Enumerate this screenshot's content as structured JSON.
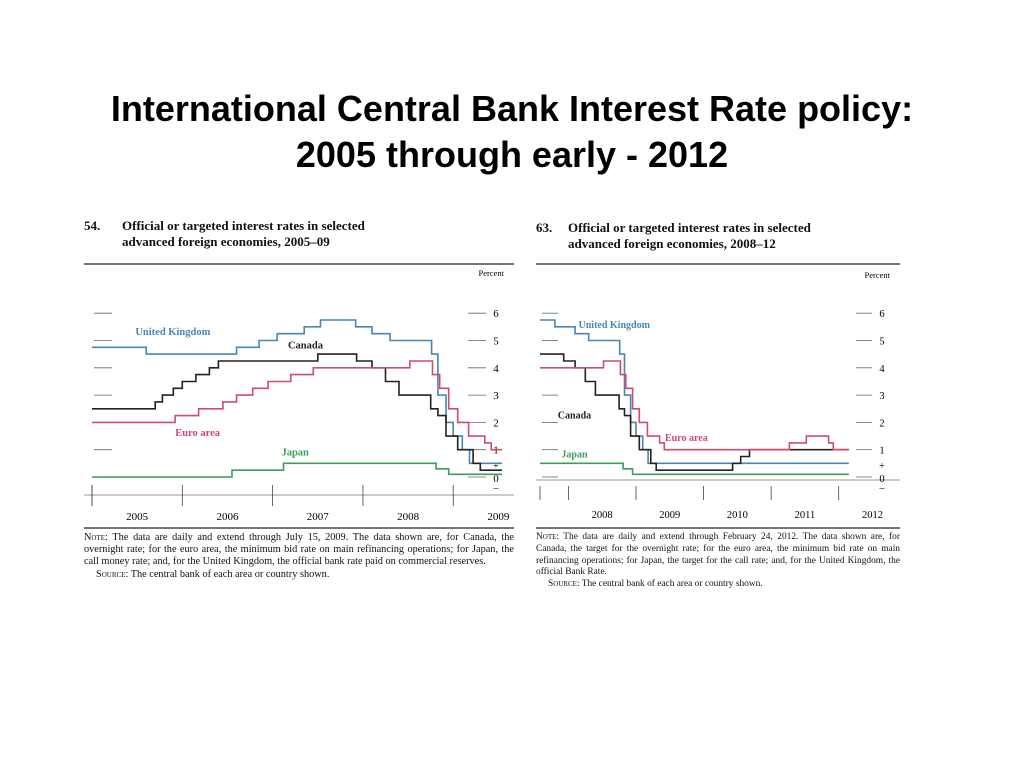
{
  "slide": {
    "title_line1": "International Central Bank Interest Rate policy:",
    "title_line2": "2005 through early - 2012"
  },
  "panels": [
    {
      "number": "54.",
      "title_line1": "Official or targeted interest rates in selected",
      "title_line2": "advanced foreign economies, 2005–09",
      "note_label": "Note:",
      "note_text": "The data are daily and extend through July 15, 2009. The data shown are, for Canada, the overnight rate; for the euro area, the minimum bid rate on main refinancing operations; for Japan, the call money rate; and, for the United Kingdom, the official bank rate paid on commercial reserves.",
      "source_label": "Source:",
      "source_text": "The central bank of each area or country shown."
    },
    {
      "number": "63.",
      "title_line1": "Official or targeted interest rates in selected",
      "title_line2": "advanced foreign economies, 2008–12",
      "note_label": "Note:",
      "note_text": "The data are daily and extend through February 24, 2012. The data shown are, for Canada, the target for the overnight rate; for the euro area, the minimum bid rate on main refinancing operations; for Japan, the target for the call rate; and, for the United Kingdom, the official Bank Rate.",
      "source_label": "Source:",
      "source_text": "The central bank of each area or country shown."
    }
  ],
  "chart_data": [
    {
      "type": "line",
      "step": true,
      "xlim": [
        2005.0,
        2009.54
      ],
      "ylim": [
        0,
        6
      ],
      "y_unit_label": "Percent",
      "yticks": [
        "0",
        "1",
        "2",
        "3",
        "4",
        "5",
        "6"
      ],
      "plus_minus": "+\n–",
      "x_tick_labels": [
        "2005",
        "2006",
        "2007",
        "2008",
        "2009"
      ],
      "colors": {
        "United Kingdom": "#4a86b4",
        "Canada": "#222222",
        "Euro area": "#d24a6e",
        "Japan": "#3f9a5f"
      },
      "series": [
        {
          "name": "United Kingdom",
          "label_at": [
            2005.48,
            5.2
          ],
          "anchor": "start",
          "points": [
            [
              2005.0,
              4.75
            ],
            [
              2005.6,
              4.5
            ],
            [
              2006.6,
              4.75
            ],
            [
              2006.85,
              5.0
            ],
            [
              2007.05,
              5.25
            ],
            [
              2007.35,
              5.5
            ],
            [
              2007.53,
              5.75
            ],
            [
              2007.92,
              5.5
            ],
            [
              2008.1,
              5.25
            ],
            [
              2008.3,
              5.0
            ],
            [
              2008.76,
              4.5
            ],
            [
              2008.83,
              3.0
            ],
            [
              2008.92,
              2.0
            ],
            [
              2009.0,
              1.5
            ],
            [
              2009.1,
              1.0
            ],
            [
              2009.18,
              0.5
            ],
            [
              2009.54,
              0.5
            ]
          ]
        },
        {
          "name": "Canada",
          "label_at": [
            2007.17,
            4.7
          ],
          "anchor": "start",
          "points": [
            [
              2005.0,
              2.5
            ],
            [
              2005.7,
              2.75
            ],
            [
              2005.78,
              3.0
            ],
            [
              2005.9,
              3.25
            ],
            [
              2006.0,
              3.5
            ],
            [
              2006.15,
              3.75
            ],
            [
              2006.3,
              4.0
            ],
            [
              2006.4,
              4.25
            ],
            [
              2007.5,
              4.5
            ],
            [
              2007.93,
              4.25
            ],
            [
              2008.1,
              4.0
            ],
            [
              2008.25,
              3.5
            ],
            [
              2008.4,
              3.0
            ],
            [
              2008.75,
              2.5
            ],
            [
              2008.83,
              2.25
            ],
            [
              2008.92,
              1.5
            ],
            [
              2009.05,
              1.0
            ],
            [
              2009.22,
              0.5
            ],
            [
              2009.3,
              0.25
            ],
            [
              2009.54,
              0.25
            ]
          ]
        },
        {
          "name": "Euro area",
          "label_at": [
            2006.17,
            1.5
          ],
          "anchor": "middle",
          "points": [
            [
              2005.0,
              2.0
            ],
            [
              2005.92,
              2.25
            ],
            [
              2006.18,
              2.5
            ],
            [
              2006.45,
              2.75
            ],
            [
              2006.6,
              3.0
            ],
            [
              2006.78,
              3.25
            ],
            [
              2006.95,
              3.5
            ],
            [
              2007.2,
              3.75
            ],
            [
              2007.45,
              4.0
            ],
            [
              2008.52,
              4.25
            ],
            [
              2008.77,
              3.75
            ],
            [
              2008.85,
              3.25
            ],
            [
              2008.95,
              2.5
            ],
            [
              2009.05,
              2.0
            ],
            [
              2009.17,
              1.5
            ],
            [
              2009.35,
              1.25
            ],
            [
              2009.42,
              1.0
            ],
            [
              2009.54,
              1.0
            ]
          ]
        },
        {
          "name": "Japan",
          "label_at": [
            2007.25,
            0.78
          ],
          "anchor": "middle",
          "points": [
            [
              2005.0,
              0.0
            ],
            [
              2006.55,
              0.25
            ],
            [
              2007.12,
              0.5
            ],
            [
              2008.81,
              0.3
            ],
            [
              2008.95,
              0.1
            ],
            [
              2009.54,
              0.1
            ]
          ]
        }
      ]
    },
    {
      "type": "line",
      "step": true,
      "xlim": [
        2007.58,
        2012.7
      ],
      "ylim": [
        0,
        6
      ],
      "y_unit_label": "Percent",
      "yticks": [
        "0",
        "1",
        "2",
        "3",
        "4",
        "5",
        "6"
      ],
      "plus_minus": "+\n–",
      "x_tick_labels": [
        "2008",
        "2009",
        "2010",
        "2011",
        "2012"
      ],
      "colors": {
        "United Kingdom": "#4a86b4",
        "Canada": "#222222",
        "Euro area": "#d24a6e",
        "Japan": "#3f9a5f"
      },
      "series": [
        {
          "name": "United Kingdom",
          "label_at": [
            2008.15,
            5.45
          ],
          "anchor": "start",
          "points": [
            [
              2007.58,
              5.75
            ],
            [
              2007.8,
              5.5
            ],
            [
              2008.1,
              5.25
            ],
            [
              2008.3,
              5.0
            ],
            [
              2008.76,
              4.5
            ],
            [
              2008.83,
              3.0
            ],
            [
              2008.92,
              2.0
            ],
            [
              2009.0,
              1.5
            ],
            [
              2009.1,
              1.0
            ],
            [
              2009.18,
              0.5
            ],
            [
              2012.15,
              0.5
            ]
          ]
        },
        {
          "name": "Canada",
          "label_at": [
            2008.09,
            2.15
          ],
          "anchor": "middle",
          "points": [
            [
              2007.58,
              4.5
            ],
            [
              2007.93,
              4.25
            ],
            [
              2008.1,
              4.0
            ],
            [
              2008.25,
              3.5
            ],
            [
              2008.4,
              3.0
            ],
            [
              2008.75,
              2.5
            ],
            [
              2008.83,
              2.25
            ],
            [
              2008.92,
              1.5
            ],
            [
              2009.05,
              1.0
            ],
            [
              2009.22,
              0.5
            ],
            [
              2009.3,
              0.25
            ],
            [
              2010.1,
              0.25
            ],
            [
              2010.43,
              0.5
            ],
            [
              2010.55,
              0.75
            ],
            [
              2010.68,
              1.0
            ],
            [
              2012.15,
              1.0
            ]
          ]
        },
        {
          "name": "Euro area",
          "label_at": [
            2009.43,
            1.32
          ],
          "anchor": "start",
          "points": [
            [
              2007.58,
              4.0
            ],
            [
              2008.52,
              4.25
            ],
            [
              2008.77,
              3.75
            ],
            [
              2008.85,
              3.25
            ],
            [
              2008.95,
              2.5
            ],
            [
              2009.05,
              2.0
            ],
            [
              2009.17,
              1.5
            ],
            [
              2009.35,
              1.25
            ],
            [
              2009.42,
              1.0
            ],
            [
              2011.27,
              1.25
            ],
            [
              2011.52,
              1.5
            ],
            [
              2011.85,
              1.25
            ],
            [
              2011.92,
              1.0
            ],
            [
              2012.15,
              1.0
            ]
          ]
        },
        {
          "name": "Japan",
          "label_at": [
            2008.09,
            0.72
          ],
          "anchor": "middle",
          "points": [
            [
              2007.58,
              0.5
            ],
            [
              2008.81,
              0.3
            ],
            [
              2008.95,
              0.1
            ],
            [
              2012.15,
              0.1
            ]
          ]
        }
      ]
    }
  ]
}
